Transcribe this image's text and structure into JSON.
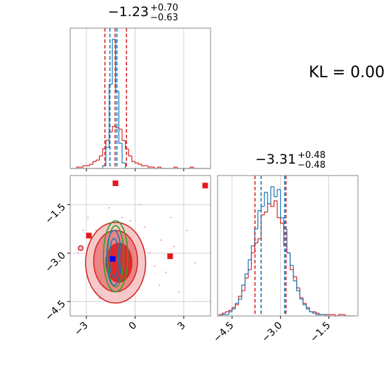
{
  "chart_data": [
    {
      "type": "histogram",
      "title": "−1.23",
      "title_upper": "+0.70",
      "title_lower": "−0.63",
      "xlim": [
        -4,
        4.65
      ],
      "ylim": [
        0,
        1
      ],
      "xticks": [
        -3,
        0,
        3
      ],
      "tick_labels": false,
      "grid": true,
      "bins": [
        -4,
        -3.8,
        -3.6,
        -3.4,
        -3.2,
        -3,
        -2.8,
        -2.6,
        -2.4,
        -2.2,
        -2,
        -1.8,
        -1.6,
        -1.4,
        -1.2,
        -1,
        -0.8,
        -0.6,
        -0.4,
        -0.2,
        0,
        0.2,
        0.4,
        0.6,
        0.8,
        1,
        1.2,
        1.4,
        1.6,
        1.8,
        2,
        2.2,
        2.4,
        2.6,
        2.8,
        3,
        3.2,
        3.4,
        3.6,
        3.8,
        4,
        4.2,
        4.4,
        4.6
      ],
      "series": [
        {
          "color": "#d62728",
          "values": [
            0,
            0,
            0.01,
            0.01,
            0.02,
            0.02,
            0.03,
            0.05,
            0.06,
            0.09,
            0.14,
            0.2,
            0.26,
            0.3,
            0.29,
            0.28,
            0.2,
            0.14,
            0.09,
            0.05,
            0.04,
            0.03,
            0.02,
            0.02,
            0.01,
            0.01,
            0,
            0.01,
            0,
            0,
            0,
            0,
            0.01,
            0,
            0,
            0,
            0,
            0.01,
            0,
            0,
            0,
            0,
            0
          ]
        },
        {
          "color": "#1f77b4",
          "values": [
            0,
            0,
            0,
            0,
            0,
            0,
            0,
            0,
            0,
            0,
            0.02,
            0.15,
            0.6,
            0.92,
            0.55,
            0.18,
            0.04,
            0,
            0,
            0,
            0,
            0,
            0,
            0,
            0,
            0,
            0,
            0,
            0,
            0,
            0,
            0,
            0,
            0,
            0,
            0,
            0,
            0,
            0,
            0,
            0,
            0,
            0
          ]
        }
      ],
      "quantiles": [
        {
          "color": "#d62728",
          "values": [
            -1.86,
            -1.23,
            -0.53
          ]
        },
        {
          "color": "#1f77b4",
          "values": [
            -1.55,
            -1.12
          ]
        }
      ]
    },
    {
      "type": "contour2d",
      "xlim": [
        -4,
        4.65
      ],
      "ylim": [
        -4.95,
        -0.6
      ],
      "xticks": [
        {
          "value": -3,
          "label": "−3"
        },
        0,
        3
      ],
      "yticks": [
        {
          "value": -1.5,
          "label": "−1.5"
        },
        {
          "value": -3,
          "label": "−3.0"
        },
        {
          "value": -4.5,
          "label": "−4.5"
        }
      ],
      "grid": true,
      "ellipses": [
        {
          "color": "#d62728",
          "fill": "#f6c9c9",
          "cx": -1.2,
          "cy": -3.3,
          "rx": 1.85,
          "ry": 1.25
        },
        {
          "color": "#d62728",
          "fill": "#ec8585",
          "cx": -1.2,
          "cy": -3.25,
          "rx": 1.35,
          "ry": 0.95
        },
        {
          "color": "#d62728",
          "fill": "#e02a2a",
          "cx": -1.0,
          "cy": -3.3,
          "rx": 0.8,
          "ry": 0.6
        },
        {
          "color": "#d62728",
          "fill": "#f6c9c9",
          "cx": -3.35,
          "cy": -2.85,
          "rx": 0.15,
          "ry": 0.07
        },
        {
          "color": "#2ca02c",
          "fill": "none",
          "cx": -1.2,
          "cy": -3.1,
          "rx": 0.75,
          "ry": 1.1
        },
        {
          "color": "#2ca02c",
          "fill": "none",
          "cx": -1.2,
          "cy": -3.1,
          "rx": 0.5,
          "ry": 0.95
        },
        {
          "color": "#1f77b4",
          "fill": "none",
          "cx": -1.3,
          "cy": -3.15,
          "rx": 0.45,
          "ry": 0.85
        },
        {
          "color": "#1f77b4",
          "fill": "none",
          "cx": -1.3,
          "cy": -3.15,
          "rx": 0.28,
          "ry": 0.6
        }
      ],
      "points": {
        "color": "#f4a6c8",
        "x": [
          -2.9,
          -2.4,
          -1.6,
          -0.3,
          0.6,
          1.6,
          2.4,
          3.2,
          1.9,
          2.7,
          -3.5,
          0.9,
          1.2,
          -0.8,
          2.2,
          3.7,
          -2.2,
          1.5,
          0.3,
          -3.2
        ],
        "y": [
          -1.9,
          -2.3,
          -1.6,
          -2.0,
          -2.2,
          -2.6,
          -2.8,
          -2.3,
          -3.6,
          -4.2,
          -3.0,
          -3.0,
          -3.4,
          -1.9,
          -1.9,
          -3.3,
          -4.4,
          -4.0,
          -1.5,
          -2.3
        ]
      },
      "markers": [
        {
          "color": "#e31a1c",
          "x": [
            -1.21,
            4.32,
            -2.85,
            2.16
          ],
          "y": [
            -0.84,
            -0.91,
            -2.46,
            -3.1
          ]
        },
        {
          "color": "#0000ff",
          "x": [
            -1.38
          ],
          "y": [
            -3.18
          ]
        }
      ]
    },
    {
      "type": "histogram",
      "title": "−3.31",
      "title_upper": "+0.48",
      "title_lower": "−0.48",
      "xlim": [
        -4.95,
        -0.6
      ],
      "ylim": [
        0,
        1
      ],
      "xticks": [
        {
          "value": -4.5,
          "label": "−4.5"
        },
        {
          "value": -3,
          "label": "−3.0"
        },
        {
          "value": -1.5,
          "label": "−1.5"
        }
      ],
      "tick_labels": true,
      "grid": true,
      "bins": [
        -4.9,
        -4.8,
        -4.7,
        -4.6,
        -4.5,
        -4.4,
        -4.3,
        -4.2,
        -4.1,
        -4,
        -3.9,
        -3.8,
        -3.7,
        -3.6,
        -3.5,
        -3.4,
        -3.3,
        -3.2,
        -3.1,
        -3,
        -2.9,
        -2.8,
        -2.7,
        -2.6,
        -2.5,
        -2.4,
        -2.3,
        -2.2,
        -2.1,
        -2,
        -1.9,
        -1.8,
        -1.7,
        -1.6,
        -1.5,
        -1.4,
        -1.3,
        -1.2,
        -1.1,
        -1,
        -0.9,
        -0.8,
        -0.7
      ],
      "series": [
        {
          "color": "#d62728",
          "values": [
            0.01,
            0.02,
            0.03,
            0.04,
            0.06,
            0.08,
            0.14,
            0.18,
            0.27,
            0.33,
            0.45,
            0.52,
            0.55,
            0.72,
            0.74,
            0.8,
            0.78,
            0.82,
            0.7,
            0.66,
            0.5,
            0.45,
            0.33,
            0.28,
            0.2,
            0.13,
            0.09,
            0.06,
            0.03,
            0.03,
            0.02,
            0.01,
            0.01,
            0.01,
            0.01,
            0.01,
            0,
            0.01,
            0.01,
            0,
            0,
            0
          ]
        },
        {
          "color": "#1f77b4",
          "values": [
            0,
            0.01,
            0.01,
            0.03,
            0.05,
            0.09,
            0.12,
            0.22,
            0.3,
            0.4,
            0.5,
            0.62,
            0.75,
            0.78,
            0.88,
            0.8,
            0.92,
            0.85,
            0.9,
            0.7,
            0.62,
            0.45,
            0.36,
            0.25,
            0.18,
            0.12,
            0.08,
            0.05,
            0.03,
            0.02,
            0.01,
            0.01,
            0.01,
            0,
            0,
            0,
            0,
            0,
            0,
            0,
            0,
            0
          ]
        }
      ],
      "quantiles": [
        {
          "color": "#d62728",
          "values": [
            -3.79,
            -2.83
          ]
        },
        {
          "color": "#1f77b4",
          "values": [
            -3.6,
            -2.87
          ]
        }
      ]
    },
    {
      "type": "text",
      "text": "KL = 0.00"
    }
  ]
}
